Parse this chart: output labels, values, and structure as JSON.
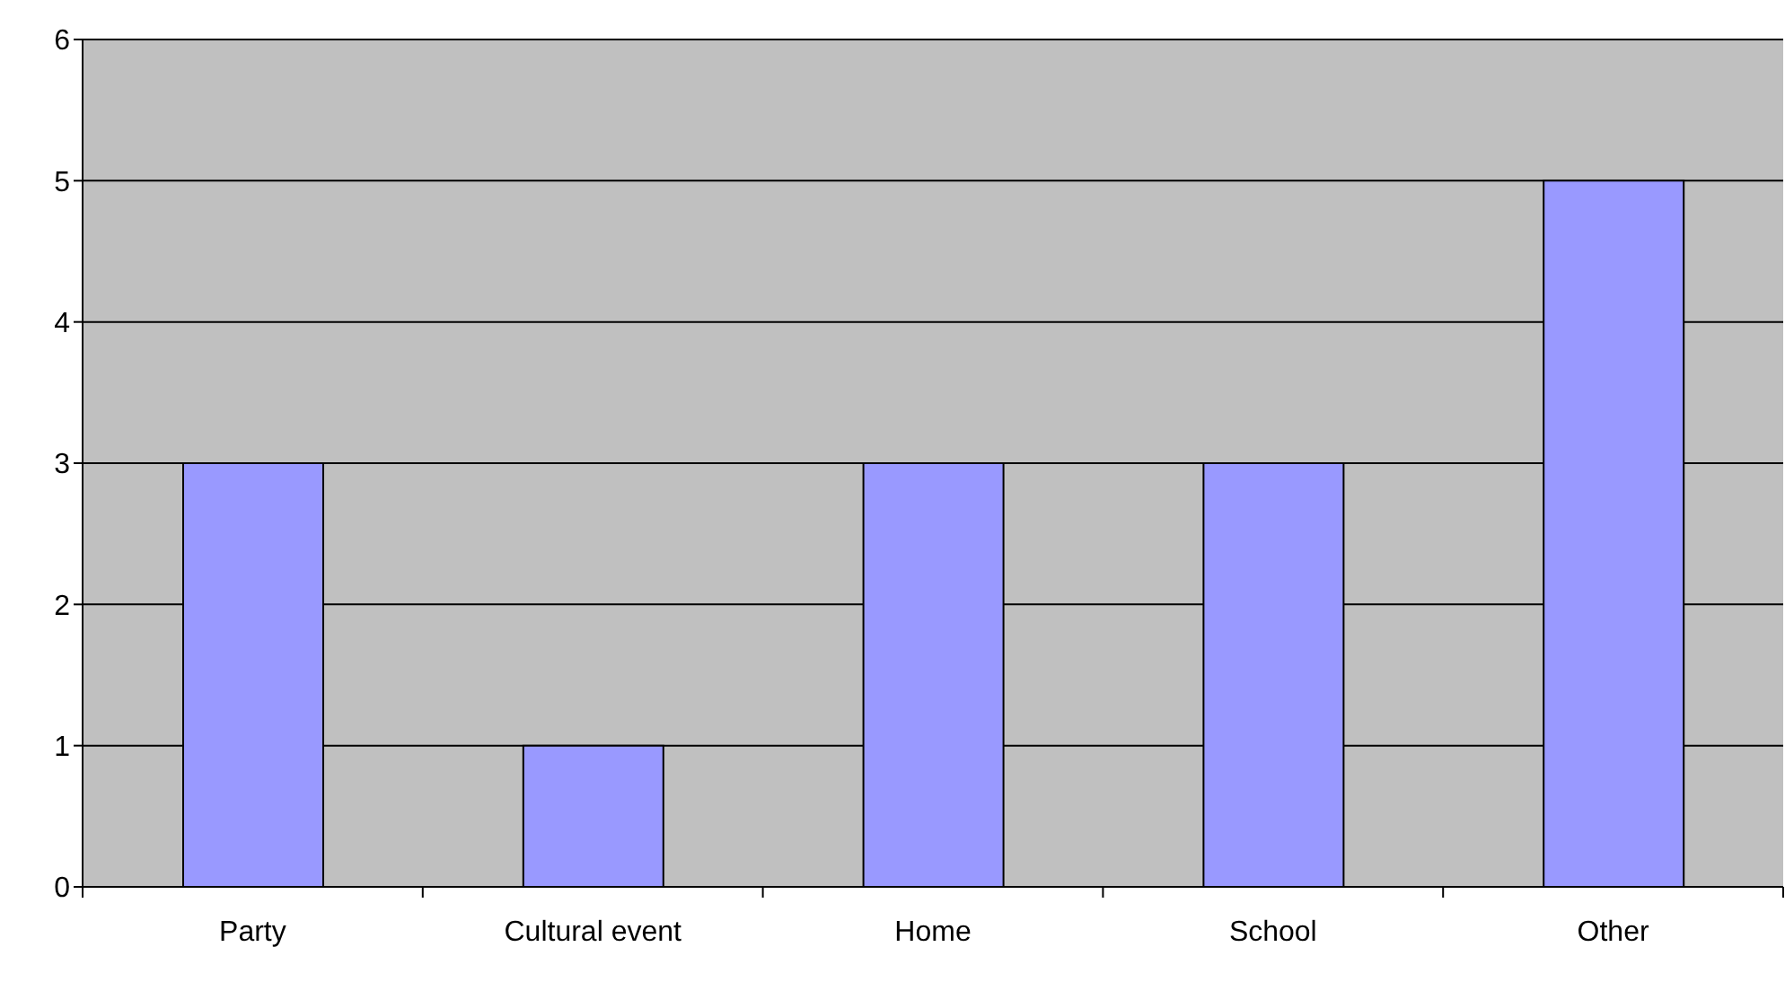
{
  "chart_data": {
    "type": "bar",
    "categories": [
      "Party",
      "Cultural event",
      "Home",
      "School",
      "Other"
    ],
    "values": [
      3,
      1,
      3,
      3,
      5
    ],
    "color": "#9999ff",
    "ylim": [
      0,
      6
    ],
    "yticks": [
      0,
      1,
      2,
      3,
      4,
      5,
      6
    ],
    "grid": "y"
  }
}
